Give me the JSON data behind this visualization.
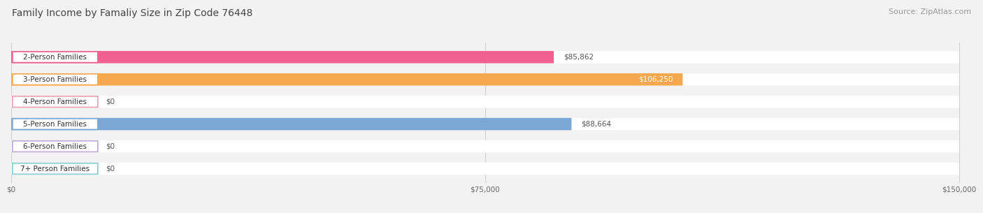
{
  "title": "Family Income by Famaliy Size in Zip Code 76448",
  "source": "Source: ZipAtlas.com",
  "categories": [
    "2-Person Families",
    "3-Person Families",
    "4-Person Families",
    "5-Person Families",
    "6-Person Families",
    "7+ Person Families"
  ],
  "values": [
    85862,
    106250,
    0,
    88664,
    0,
    0
  ],
  "bar_colors": [
    "#F06090",
    "#F5A84E",
    "#F0A0B0",
    "#7BA7D4",
    "#C0A8D8",
    "#80CDD4"
  ],
  "value_labels": [
    "$85,862",
    "$106,250",
    "$0",
    "$88,664",
    "$0",
    "$0"
  ],
  "value_inside": [
    false,
    true,
    false,
    false,
    false,
    false
  ],
  "xlim_max": 150000,
  "xticks": [
    0,
    75000,
    150000
  ],
  "xticklabels": [
    "$0",
    "$75,000",
    "$150,000"
  ],
  "bg_color": "#F2F2F2",
  "title_fontsize": 10,
  "source_fontsize": 8,
  "label_fontsize": 7.5,
  "value_fontsize": 7.5
}
